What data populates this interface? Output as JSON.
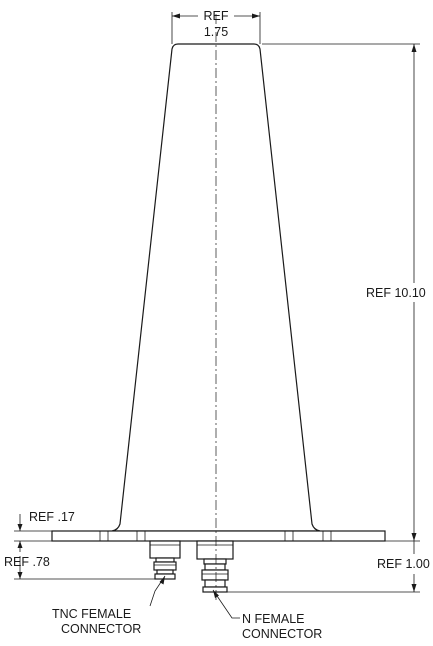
{
  "dimensions": {
    "top_width_ref": "REF",
    "top_width_value": "1.75",
    "height": "REF 10.10",
    "flange_thickness": "REF .17",
    "tnc_connector_depth": "REF .78",
    "n_connector_depth": "REF 1.00"
  },
  "callouts": {
    "tnc_line1": "TNC FEMALE",
    "tnc_line2": "CONNECTOR",
    "n_line1": "N FEMALE",
    "n_line2": "CONNECTOR"
  }
}
